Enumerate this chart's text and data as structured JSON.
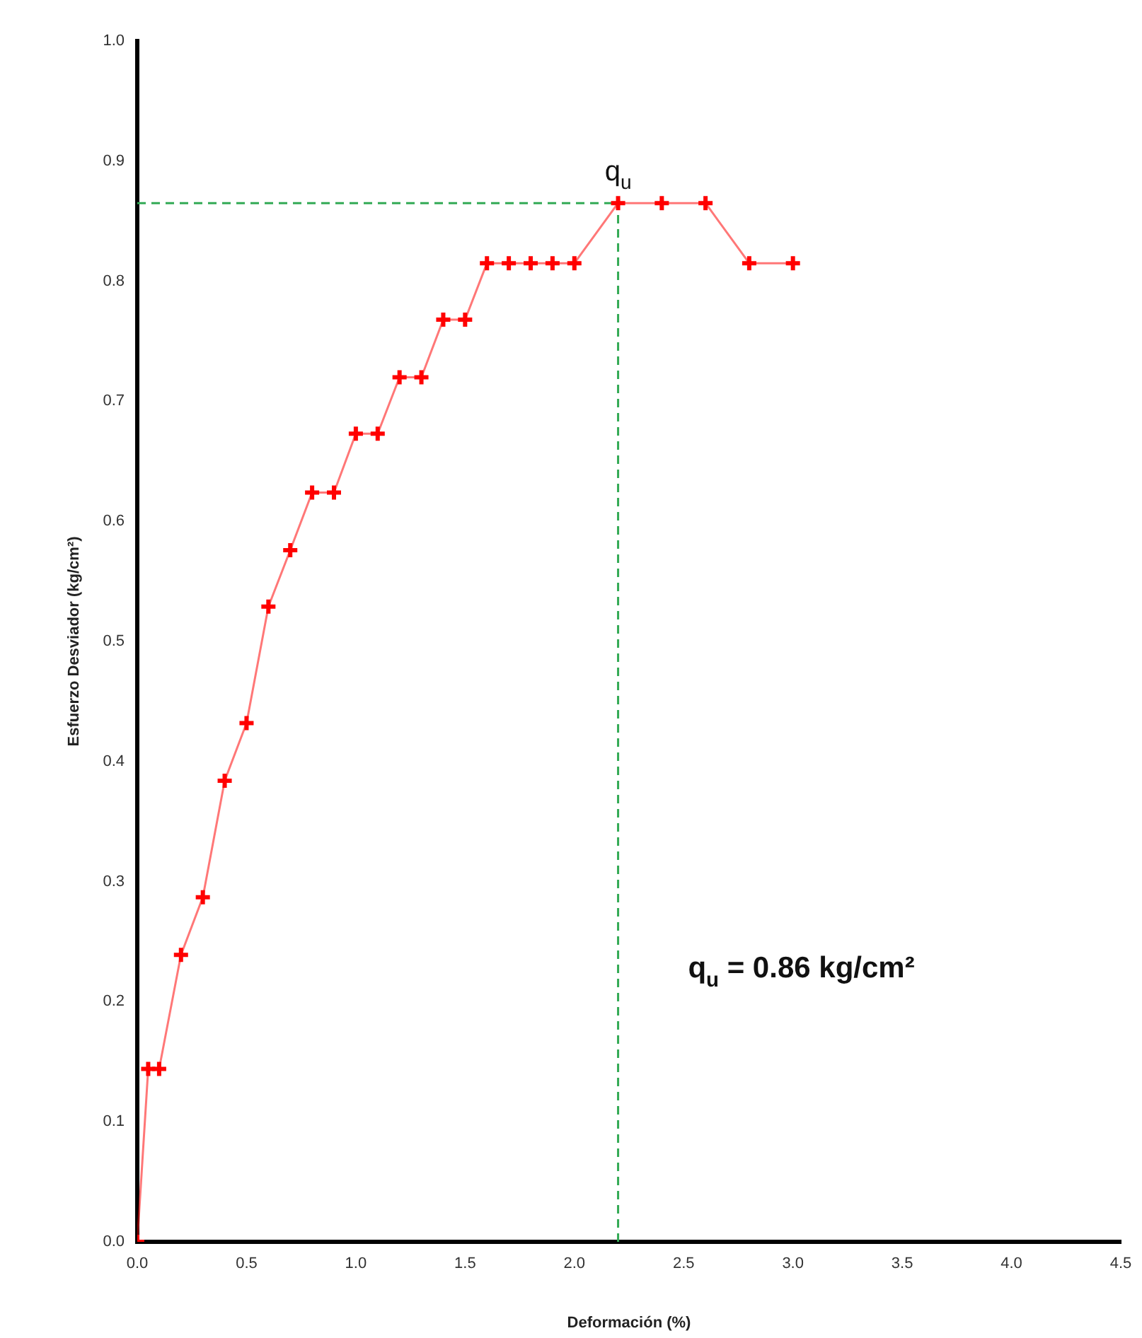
{
  "chart_data": {
    "type": "line",
    "xlabel": "Deformación (%)",
    "ylabel": "Esfuerzo Desviador (kg/cm²)",
    "x": [
      0,
      0.05,
      0.1,
      0.2,
      0.3,
      0.4,
      0.5,
      0.6,
      0.7,
      0.8,
      0.9,
      1.0,
      1.1,
      1.2,
      1.3,
      1.4,
      1.5,
      1.6,
      1.7,
      1.8,
      1.9,
      2.0,
      2.2,
      2.4,
      2.6,
      2.8,
      3.0
    ],
    "series": [
      {
        "color": "#ff0000",
        "values": [
          0,
          0.144,
          0.144,
          0.239,
          0.287,
          0.384,
          0.432,
          0.529,
          0.576,
          0.624,
          0.624,
          0.673,
          0.673,
          0.72,
          0.72,
          0.768,
          0.768,
          0.815,
          0.815,
          0.815,
          0.815,
          0.815,
          0.865,
          0.865,
          0.865,
          0.815,
          0.815
        ]
      }
    ],
    "xlim": [
      0,
      4.5
    ],
    "xticks": [
      {
        "value": 0,
        "label": "0.0"
      },
      0.5,
      {
        "value": 1,
        "label": "1.0"
      },
      1.5,
      {
        "value": 2,
        "label": "2.0"
      },
      2.5,
      {
        "value": 3,
        "label": "3.0"
      },
      3.5,
      {
        "value": 4,
        "label": "4.0"
      },
      4.5
    ],
    "ylim": [
      0,
      1
    ],
    "yticks": [
      {
        "value": 0,
        "label": "0.0"
      },
      0.1,
      0.2,
      0.3,
      0.4,
      0.5,
      0.6,
      0.7,
      0.8,
      0.9,
      {
        "value": 1,
        "label": "1.0"
      }
    ],
    "ref_lines": [
      {
        "axis": "x",
        "value": 2.2,
        "color": "#33aa55",
        "line_style": "dashed"
      },
      {
        "axis": "y",
        "value": 0.865,
        "color": "#33aa55",
        "line_style": "dashed"
      }
    ],
    "annotations": [
      {
        "text": "q$_{u}$",
        "x": 2.2,
        "y": 0.865
      },
      "q$_{u}$ = 0.86 kg/cm²"
    ],
    "marker": "cross",
    "line_style": "solid",
    "grid": false,
    "legend": false
  }
}
